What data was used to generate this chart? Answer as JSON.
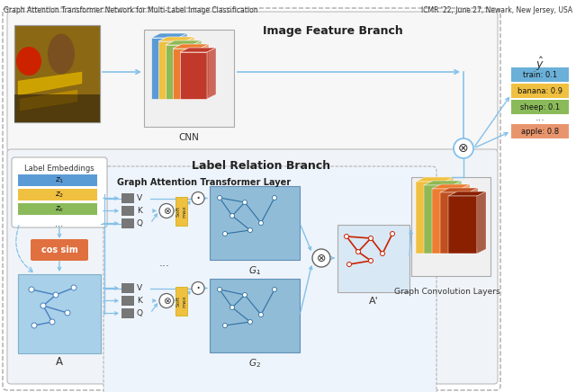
{
  "title_left": "Graph Attention Transformer Network for Multi-Label Image Classification",
  "title_right": "ICMR '22, June 27, Newark, New Jersey, USA",
  "image_feature_branch_label": "Image Feature Branch",
  "label_relation_branch_label": "Label Relation Branch",
  "graph_attention_layer_label": "Graph Attention Transformer Layer",
  "cnn_label": "CNN",
  "graph_conv_label": "Graph Convolution Layers",
  "y_hat_label": "$\\hat{y}$",
  "label_embeddings_label": "Label Embeddings",
  "cos_sim_label": "cos sim",
  "A_label": "A",
  "A_prime_label": "A'",
  "G1_label": "$G_1$",
  "G2_label": "$G_2$",
  "Z1_label": "$z_1$",
  "Z2_label": "$z_2$",
  "Zk_label": "$z_k$",
  "output_labels": [
    "train: 0.1",
    "banana: 0.9",
    "sheep: 0.1"
  ],
  "output_labels_colors": [
    "#6ab0d8",
    "#f0c040",
    "#8aba5a"
  ],
  "output_label_bottom": "apple: 0.8",
  "output_label_bottom_color": "#e8956d",
  "VKQ_labels": [
    "V",
    "K",
    "Q"
  ],
  "color_orange": "#e07040",
  "color_yellow": "#f0c040",
  "color_gray": "#808080",
  "color_arrow": "#85c1e9",
  "cnn_colors": [
    "#5b9bd5",
    "#f0c040",
    "#90b855",
    "#ed7d31",
    "#c0392b"
  ],
  "gcl_colors": [
    "#f0c040",
    "#90b855",
    "#ed7d31",
    "#c05020",
    "#8b2000"
  ],
  "emb_colors": [
    "#5b9bd5",
    "#f0c040",
    "#8aba5a"
  ]
}
